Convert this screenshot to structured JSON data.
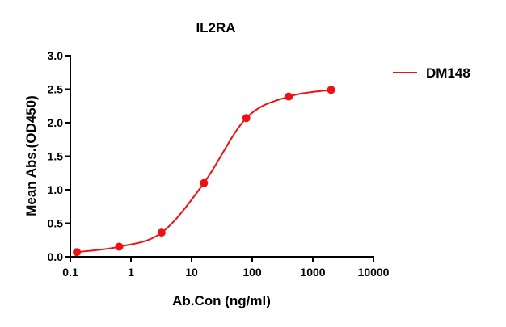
{
  "chart_data": {
    "type": "line",
    "title": "IL2RA",
    "xlabel": "Ab.Con (ng/ml)",
    "ylabel": "Mean Abs.(OD450)",
    "xscale": "log",
    "xlim": [
      0.1,
      10000
    ],
    "ylim": [
      0,
      3.0
    ],
    "xticks": [
      "0.1",
      "1",
      "10",
      "100",
      "1000",
      "10000"
    ],
    "xtick_values": [
      0.1,
      1,
      10,
      100,
      1000,
      10000
    ],
    "yticks": [
      "0.0",
      "0.5",
      "1.0",
      "1.5",
      "2.0",
      "2.5",
      "3.0"
    ],
    "ytick_values": [
      0,
      0.5,
      1.0,
      1.5,
      2.0,
      2.5,
      3.0
    ],
    "grid": false,
    "legend_position": "top-right",
    "series": [
      {
        "name": "DM148",
        "color": "#ee1111",
        "x": [
          0.128,
          0.64,
          3.2,
          16,
          80,
          400,
          2000
        ],
        "y": [
          0.07,
          0.15,
          0.36,
          1.1,
          2.07,
          2.39,
          2.49
        ]
      }
    ]
  }
}
